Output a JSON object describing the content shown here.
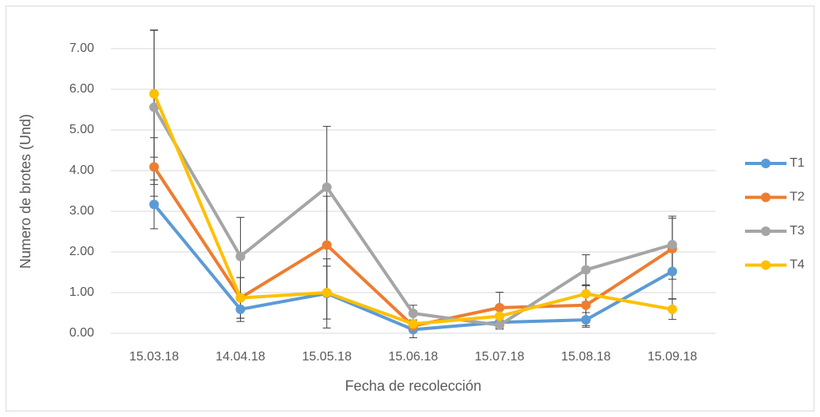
{
  "chart_data": {
    "type": "line",
    "x_label": "Fecha de recolección",
    "y_label": "Numero de brotes (Und)",
    "categories": [
      "15.03.18",
      "14.04.18",
      "15.05.18",
      "15.06.18",
      "15.07.18",
      "15.08.18",
      "15.09.18"
    ],
    "series": [
      {
        "name": "T1",
        "color": "#5b9bd5",
        "values": [
          3.17,
          0.59,
          0.98,
          0.09,
          0.27,
          0.33,
          1.52
        ],
        "errors": [
          0.6,
          0.3,
          0.85,
          0.2,
          0.15,
          0.18,
          0.67
        ]
      },
      {
        "name": "T2",
        "color": "#ed7d31",
        "values": [
          4.09,
          0.87,
          2.17,
          0.18,
          0.63,
          0.69,
          2.08
        ],
        "errors": [
          0.72,
          0.5,
          1.2,
          0.1,
          0.38,
          0.5,
          0.75
        ]
      },
      {
        "name": "T3",
        "color": "#a5a5a5",
        "values": [
          5.56,
          1.89,
          3.59,
          0.49,
          0.2,
          1.56,
          2.18
        ],
        "errors": [
          1.9,
          0.96,
          1.5,
          0.2,
          0.1,
          0.37,
          0.7
        ]
      },
      {
        "name": "T4",
        "color": "#ffc000",
        "values": [
          5.89,
          0.87,
          1.0,
          0.23,
          0.42,
          0.97,
          0.59
        ],
        "errors": [
          1.56,
          0.5,
          0.65,
          0.1,
          0.15,
          0.2,
          0.25
        ]
      }
    ],
    "ylim": [
      0,
      7.5
    ],
    "yticks": [
      {
        "value": 0,
        "label": "0.00"
      },
      {
        "value": 1,
        "label": "1.00"
      },
      {
        "value": 2,
        "label": "2.00"
      },
      {
        "value": 3,
        "label": "3.00"
      },
      {
        "value": 4,
        "label": "4.00"
      },
      {
        "value": 5,
        "label": "5.00"
      },
      {
        "value": 6,
        "label": "6.00"
      },
      {
        "value": 7,
        "label": "7.00"
      }
    ],
    "grid": true,
    "legend": "right"
  }
}
